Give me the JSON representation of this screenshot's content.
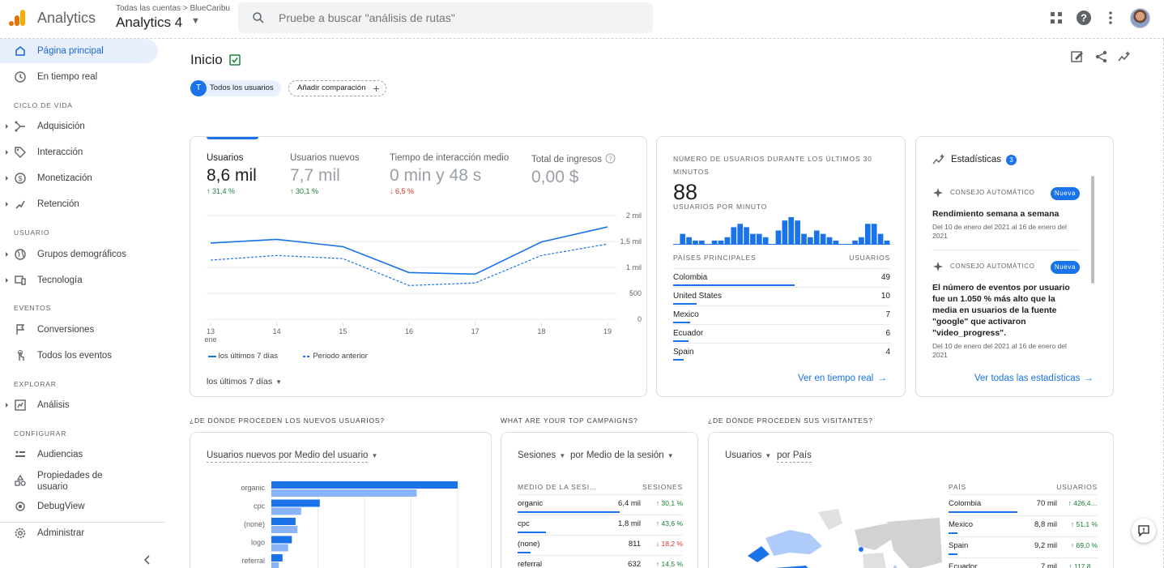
{
  "topbar": {
    "app_name": "Analytics",
    "breadcrumb_all": "Todas las cuentas",
    "breadcrumb_account": "BlueCaribu",
    "property": "Analytics 4",
    "search_placeholder": "Pruebe a buscar \"análisis de rutas\""
  },
  "sidebar": {
    "home": "Página principal",
    "realtime": "En tiempo real",
    "sec_lifecycle": "CICLO DE VIDA",
    "acquisition": "Adquisición",
    "engagement": "Interacción",
    "monetization": "Monetización",
    "retention": "Retención",
    "sec_user": "USUARIO",
    "demographics": "Grupos demográficos",
    "tech": "Tecnología",
    "sec_events": "EVENTOS",
    "conversions": "Conversiones",
    "all_events": "Todos los eventos",
    "sec_explore": "EXPLORAR",
    "analysis": "Análisis",
    "sec_configure": "CONFIGURAR",
    "audiences": "Audiencias",
    "custom_props": "Propiedades de usuario",
    "debugview": "DebugView",
    "admin": "Administrar"
  },
  "header": {
    "title": "Inicio",
    "chip_all_letter": "T",
    "chip_all": "Todos los usuarios",
    "chip_add": "Añadir comparación"
  },
  "overview": {
    "metrics": [
      {
        "label": "Usuarios",
        "value": "8,6 mil",
        "delta": "↑ 31,4 %",
        "dir": "up"
      },
      {
        "label": "Usuarios nuevos",
        "value": "7,7 mil",
        "delta": "↑ 30,1 %",
        "dir": "up"
      },
      {
        "label": "Tiempo de interacción medio",
        "value": "0 min y 48 s",
        "delta": "↓ 6,5 %",
        "dir": "down"
      },
      {
        "label": "Total de ingresos",
        "value": "0,00 $",
        "delta": "",
        "dir": ""
      }
    ],
    "legend_current": "los últimos 7 días",
    "legend_previous": "Periodo anterior",
    "period": "los últimos 7 días"
  },
  "chart_data": {
    "type": "line",
    "x": [
      "13",
      "14",
      "15",
      "16",
      "17",
      "18",
      "19"
    ],
    "x_sublabel": "ene",
    "y_ticks": [
      "2 mil",
      "1,5 mil",
      "1 mil",
      "500",
      "0"
    ],
    "y_tick_values": [
      2000,
      1500,
      1000,
      500,
      0
    ],
    "ylim": [
      0,
      2000
    ],
    "series": [
      {
        "name": "los últimos 7 días",
        "values": [
          1470,
          1540,
          1400,
          900,
          870,
          1490,
          1780
        ],
        "color": "#1a73e8",
        "style": "solid"
      },
      {
        "name": "Periodo anterior",
        "values": [
          1140,
          1230,
          1170,
          650,
          700,
          1230,
          1450
        ],
        "color": "#1a73e8",
        "style": "dashed"
      }
    ],
    "grid": true
  },
  "realtime": {
    "title": "NÚMERO DE USUARIOS DURANTE LOS ÚLTIMOS 30 MINUTOS",
    "value": "88",
    "subtitle": "USUARIOS POR MINUTO",
    "bars": [
      0,
      3,
      2,
      1,
      1,
      0,
      1,
      1,
      2,
      5,
      6,
      5,
      3,
      3,
      2,
      0,
      4,
      7,
      8,
      7,
      3,
      2,
      4,
      3,
      2,
      1,
      0,
      0,
      1,
      2,
      6,
      6,
      3,
      1
    ],
    "col_country": "PAÍSES PRINCIPALES",
    "col_users": "USUARIOS",
    "rows": [
      {
        "country": "Colombia",
        "users": "49",
        "share": 0.56
      },
      {
        "country": "United States",
        "users": "10",
        "share": 0.11
      },
      {
        "country": "Mexico",
        "users": "7",
        "share": 0.08
      },
      {
        "country": "Ecuador",
        "users": "6",
        "share": 0.07
      },
      {
        "country": "Spain",
        "users": "4",
        "share": 0.05
      }
    ],
    "link": "Ver en tiempo real"
  },
  "insights": {
    "title": "Estadísticas",
    "count": "3",
    "items": [
      {
        "tag": "CONSEJO AUTOMÁTICO",
        "badge": "Nueva",
        "heading": "Rendimiento semana a semana",
        "date": "Del 10 de enero del 2021 al 16 de enero del 2021"
      },
      {
        "tag": "CONSEJO AUTOMÁTICO",
        "badge": "Nueva",
        "heading": "El número de eventos por usuario fue un 1.050 % más alto que la media en usuarios de la fuente \"google\" que activaron \"video_progress\".",
        "date": "Del 10 de enero del 2021 al 16 de enero del 2021"
      }
    ],
    "link": "Ver todas las estadísticas"
  },
  "sections": {
    "new_users": "¿DE DÓNDE PROCEDEN LOS NUEVOS USUARIOS?",
    "campaigns": "WHAT ARE YOUR TOP CAMPAIGNS?",
    "visitors": "¿DE DÓNDE PROCEDEN SUS VISITANTES?"
  },
  "new_users": {
    "dropdown": "Usuarios nuevos por Medio del usuario",
    "bars": [
      {
        "label": "organic",
        "current": 100,
        "previous": 78
      },
      {
        "label": "cpc",
        "current": 26,
        "previous": 16
      },
      {
        "label": "(none)",
        "current": 13,
        "previous": 14
      },
      {
        "label": "logo",
        "current": 11,
        "previous": 9
      },
      {
        "label": "referral",
        "current": 6,
        "previous": 4
      }
    ]
  },
  "campaigns": {
    "dropdown_metric": "Sesiones",
    "dropdown_dim": "por Medio de la sesión",
    "col_dim": "MEDIO DE LA SESI…",
    "col_val": "SESIONES",
    "rows": [
      {
        "label": "organic",
        "value": "6,4 mil",
        "delta": "↑ 30,1 %",
        "dir": "up",
        "share": 0.62
      },
      {
        "label": "cpc",
        "value": "1,8 mil",
        "delta": "↑ 43,6 %",
        "dir": "up",
        "share": 0.17
      },
      {
        "label": "(none)",
        "value": "811",
        "delta": "↓ 18,2 %",
        "dir": "down",
        "share": 0.08
      },
      {
        "label": "referral",
        "value": "632",
        "delta": "↑ 14,5 %",
        "dir": "up",
        "share": 0.06
      }
    ]
  },
  "visitors": {
    "dropdown_metric": "Usuarios",
    "dropdown_dim": "por País",
    "col_dim": "PAÍS",
    "col_val": "USUARIOS",
    "rows": [
      {
        "label": "Colombia",
        "value": "70 mil",
        "delta": "↑ 426,4…",
        "dir": "up",
        "share": 0.85
      },
      {
        "label": "Mexico",
        "value": "8,8 mil",
        "delta": "↑ 51,1 %",
        "dir": "up",
        "share": 0.11
      },
      {
        "label": "Spain",
        "value": "9,2 mil",
        "delta": "↑ 69,0 %",
        "dir": "up",
        "share": 0.11
      },
      {
        "label": "Ecuador",
        "value": "7 mil",
        "delta": "↑ 117,8…",
        "dir": "up",
        "share": 0.09
      }
    ]
  },
  "colors": {
    "accent": "#1a73e8",
    "accent_light": "#8ab4f8",
    "up": "#188038",
    "down": "#d93025"
  }
}
